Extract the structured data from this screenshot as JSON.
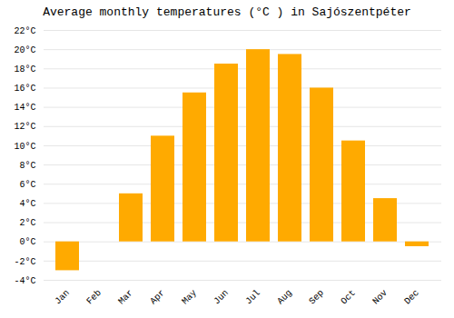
{
  "chart_data": {
    "type": "bar",
    "title": "Average monthly temperatures (°C ) in Sajószentpéter",
    "categories": [
      "Jan",
      "Feb",
      "Mar",
      "Apr",
      "May",
      "Jun",
      "Jul",
      "Aug",
      "Sep",
      "Oct",
      "Nov",
      "Dec"
    ],
    "values": [
      -3.0,
      0.0,
      5.0,
      11.0,
      15.5,
      18.5,
      20.0,
      19.5,
      16.0,
      10.5,
      4.5,
      -0.5
    ],
    "color": "#FFAA00",
    "ylim": [
      -4,
      22
    ],
    "yticks": [
      {
        "value": -4,
        "label": "-4°C"
      },
      {
        "value": -2,
        "label": "-2°C"
      },
      {
        "value": 0,
        "label": "0°C"
      },
      {
        "value": 2,
        "label": "2°C"
      },
      {
        "value": 4,
        "label": "4°C"
      },
      {
        "value": 6,
        "label": "6°C"
      },
      {
        "value": 8,
        "label": "8°C"
      },
      {
        "value": 10,
        "label": "10°C"
      },
      {
        "value": 12,
        "label": "12°C"
      },
      {
        "value": 14,
        "label": "14°C"
      },
      {
        "value": 16,
        "label": "16°C"
      },
      {
        "value": 18,
        "label": "18°C"
      },
      {
        "value": 20,
        "label": "20°C"
      },
      {
        "value": 22,
        "label": "22°C"
      }
    ],
    "grid": true
  }
}
